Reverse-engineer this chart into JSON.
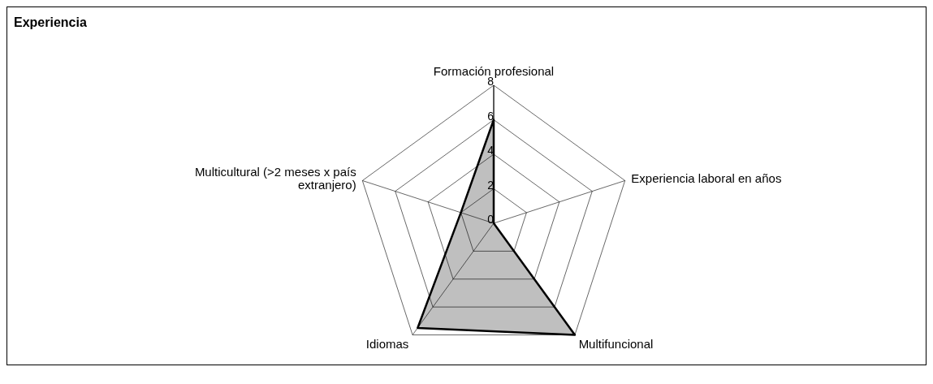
{
  "chart_data": {
    "type": "radar",
    "title": "Experiencia",
    "categories": [
      "Formación profesional",
      "Experiencia laboral en años",
      "Multifuncional",
      "Idiomas",
      "Multicultural (>2 meses x país extranjero)"
    ],
    "series": [
      {
        "color": "#000000",
        "values": [
          6,
          0,
          8,
          7.5,
          2
        ]
      }
    ],
    "ylim": [
      0,
      8
    ],
    "yticks": [
      0,
      2,
      4,
      6,
      8
    ],
    "grid": true,
    "legend": false,
    "marker": "none"
  }
}
